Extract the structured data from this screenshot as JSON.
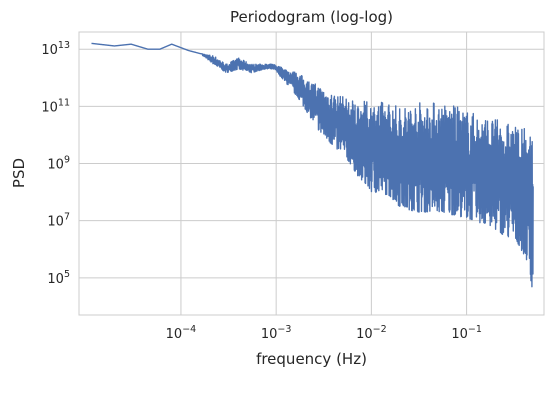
{
  "chart_data": {
    "type": "line",
    "title": "Periodogram (log-log)",
    "xlabel": "frequency (Hz)",
    "ylabel": "PSD",
    "x_scale": "log",
    "y_scale": "log",
    "xlim": [
      8.5e-06,
      0.65
    ],
    "ylim": [
      5000,
      40000000000000
    ],
    "grid": true,
    "legend": "none",
    "x_ticks": [
      {
        "base": "10",
        "exp": "−4",
        "value": 0.0001
      },
      {
        "base": "10",
        "exp": "−3",
        "value": 0.001
      },
      {
        "base": "10",
        "exp": "−2",
        "value": 0.01
      },
      {
        "base": "10",
        "exp": "−1",
        "value": 0.1
      }
    ],
    "y_ticks": [
      {
        "base": "10",
        "exp": "5",
        "value": 100000
      },
      {
        "base": "10",
        "exp": "7",
        "value": 10000000
      },
      {
        "base": "10",
        "exp": "9",
        "value": 1000000000
      },
      {
        "base": "10",
        "exp": "11",
        "value": 100000000000
      },
      {
        "base": "10",
        "exp": "13",
        "value": 10000000000000
      }
    ],
    "series": [
      {
        "color": "#4c72b0",
        "envelope": [
          {
            "x": 1.15e-05,
            "upper": 16000000000000,
            "lower": 16000000000000
          },
          {
            "x": 2e-05,
            "upper": 13000000000000,
            "lower": 13000000000000
          },
          {
            "x": 3e-05,
            "upper": 15000000000000,
            "lower": 15000000000000
          },
          {
            "x": 4.5e-05,
            "upper": 10000000000000,
            "lower": 10000000000000
          },
          {
            "x": 6e-05,
            "upper": 10000000000000,
            "lower": 10000000000000
          },
          {
            "x": 8e-05,
            "upper": 15000000000000,
            "lower": 15000000000000
          },
          {
            "x": 0.00012,
            "upper": 9000000000000,
            "lower": 9000000000000
          },
          {
            "x": 0.00016,
            "upper": 7000000000000,
            "lower": 7000000000000
          },
          {
            "x": 0.00022,
            "upper": 6000000000000,
            "lower": 3000000000000
          },
          {
            "x": 0.0003,
            "upper": 3000000000000,
            "lower": 1500000000000
          },
          {
            "x": 0.0004,
            "upper": 5000000000000,
            "lower": 2000000000000
          },
          {
            "x": 0.00055,
            "upper": 3000000000000,
            "lower": 1500000000000
          },
          {
            "x": 0.00075,
            "upper": 3000000000000,
            "lower": 2000000000000
          },
          {
            "x": 0.00095,
            "upper": 3000000000000,
            "lower": 2000000000000
          },
          {
            "x": 0.0013,
            "upper": 2000000000000,
            "lower": 600000000000
          },
          {
            "x": 0.0017,
            "upper": 1500000000000,
            "lower": 200000000000
          },
          {
            "x": 0.0022,
            "upper": 800000000000,
            "lower": 50000000000
          },
          {
            "x": 0.003,
            "upper": 500000000000,
            "lower": 10000000000
          },
          {
            "x": 0.004,
            "upper": 300000000000,
            "lower": 4000000000
          },
          {
            "x": 0.0055,
            "upper": 200000000000,
            "lower": 1500000000
          },
          {
            "x": 0.0075,
            "upper": 150000000000,
            "lower": 300000000
          },
          {
            "x": 0.01,
            "upper": 150000000000,
            "lower": 100000000
          },
          {
            "x": 0.015,
            "upper": 150000000000,
            "lower": 80000000
          },
          {
            "x": 0.02,
            "upper": 100000000000,
            "lower": 30000000
          },
          {
            "x": 0.03,
            "upper": 150000000000,
            "lower": 20000000
          },
          {
            "x": 0.05,
            "upper": 150000000000,
            "lower": 20000000
          },
          {
            "x": 0.08,
            "upper": 100000000000,
            "lower": 15000000
          },
          {
            "x": 0.12,
            "upper": 60000000000,
            "lower": 10000000
          },
          {
            "x": 0.18,
            "upper": 40000000000,
            "lower": 6000000
          },
          {
            "x": 0.25,
            "upper": 30000000000,
            "lower": 3000000
          },
          {
            "x": 0.35,
            "upper": 20000000000,
            "lower": 1500000
          },
          {
            "x": 0.45,
            "upper": 15000000000,
            "lower": 300000
          },
          {
            "x": 0.5,
            "upper": 10000000000,
            "lower": 20000
          }
        ]
      }
    ]
  }
}
